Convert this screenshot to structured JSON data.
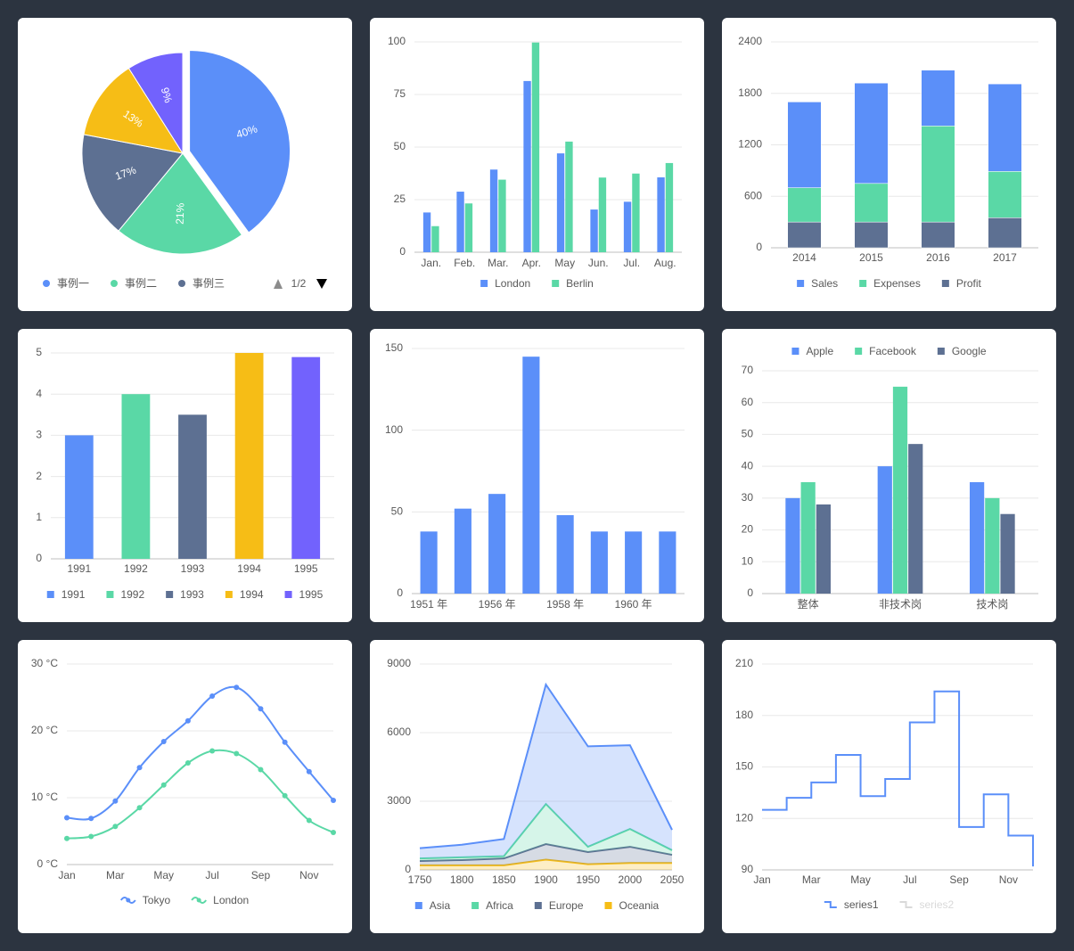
{
  "chart_data": [
    {
      "type": "pie",
      "categories": [
        "事例一",
        "事例二",
        "事例三",
        null,
        null
      ],
      "values": [
        40,
        21,
        17,
        13,
        9
      ],
      "value_labels": [
        "40%",
        "21%",
        "17%",
        "13%",
        "9%"
      ],
      "colors": [
        "#5b8ff9",
        "#5ad8a6",
        "#5d7092",
        "#f6bd16",
        "#7262fd"
      ],
      "legend_page": "1/2"
    },
    {
      "type": "bar",
      "categories": [
        "Jan.",
        "Feb.",
        "Mar.",
        "Apr.",
        "May",
        "Jun.",
        "Jul.",
        "Aug."
      ],
      "series": [
        {
          "name": "London",
          "color": "#5b8ff9",
          "values": [
            18.9,
            28.8,
            39.3,
            81.4,
            47,
            20.3,
            24,
            35.6
          ]
        },
        {
          "name": "Berlin",
          "color": "#5ad8a6",
          "values": [
            12.4,
            23.2,
            34.5,
            99.7,
            52.6,
            35.5,
            37.4,
            42.4
          ]
        }
      ],
      "ylim": [
        0,
        100
      ],
      "yticks": [
        0,
        25,
        50,
        75,
        100
      ],
      "grid": true,
      "legend": "bottom"
    },
    {
      "type": "bar",
      "stacked": true,
      "categories": [
        "2014",
        "2015",
        "2016",
        "2017"
      ],
      "series": [
        {
          "name": "Sales",
          "color": "#5b8ff9",
          "values": [
            1000,
            1170,
            650,
            1020
          ]
        },
        {
          "name": "Expenses",
          "color": "#5ad8a6",
          "values": [
            400,
            450,
            1120,
            540
          ]
        },
        {
          "name": "Profit",
          "color": "#5d7092",
          "values": [
            300,
            300,
            300,
            350
          ]
        }
      ],
      "ylim": [
        0,
        2400
      ],
      "yticks": [
        0,
        600,
        1200,
        1800,
        2400
      ],
      "grid": true,
      "legend": "bottom"
    },
    {
      "type": "bar",
      "categories": [
        "1991",
        "1992",
        "1993",
        "1994",
        "1995"
      ],
      "values": [
        3,
        4,
        3.5,
        5,
        4.9
      ],
      "colors": [
        "#5b8ff9",
        "#5ad8a6",
        "#5d7092",
        "#f6bd16",
        "#7262fd"
      ],
      "ylim": [
        0,
        5
      ],
      "yticks": [
        0,
        1,
        2,
        3,
        4,
        5
      ],
      "grid": true,
      "legend": "bottom"
    },
    {
      "type": "bar",
      "categories": [
        "1951 年",
        null,
        "1956 年",
        null,
        "1958 年",
        null,
        "1960 年",
        null
      ],
      "values": [
        38,
        52,
        61,
        145,
        48,
        38,
        38,
        38
      ],
      "color": "#5b8ff9",
      "ylim": [
        0,
        150
      ],
      "yticks": [
        0,
        50,
        100,
        150
      ],
      "grid": true
    },
    {
      "type": "bar",
      "categories": [
        "整体",
        "非技术岗",
        "技术岗"
      ],
      "series": [
        {
          "name": "Apple",
          "color": "#5b8ff9",
          "values": [
            30,
            40,
            35
          ]
        },
        {
          "name": "Facebook",
          "color": "#5ad8a6",
          "values": [
            35,
            65,
            30
          ]
        },
        {
          "name": "Google",
          "color": "#5d7092",
          "values": [
            28,
            47,
            25
          ]
        }
      ],
      "ylim": [
        0,
        70
      ],
      "yticks": [
        0,
        10,
        20,
        30,
        40,
        50,
        60,
        70
      ],
      "grid": true,
      "legend": "top"
    },
    {
      "type": "line",
      "smooth": true,
      "categories": [
        "Jan",
        null,
        "Mar",
        null,
        "May",
        null,
        "Jul",
        null,
        "Sep",
        null,
        "Nov",
        null
      ],
      "series": [
        {
          "name": "Tokyo",
          "color": "#5b8ff9",
          "values": [
            7,
            6.9,
            9.5,
            14.5,
            18.4,
            21.5,
            25.2,
            26.5,
            23.3,
            18.3,
            13.9,
            9.6
          ]
        },
        {
          "name": "London",
          "color": "#5ad8a6",
          "values": [
            3.9,
            4.2,
            5.7,
            8.5,
            11.9,
            15.2,
            17,
            16.6,
            14.2,
            10.3,
            6.6,
            4.8
          ]
        }
      ],
      "ylim": [
        0,
        30
      ],
      "yticks": [
        {
          "value": 0,
          "label": "0 °C"
        },
        {
          "value": 10,
          "label": "10 °C"
        },
        {
          "value": 20,
          "label": "20 °C"
        },
        {
          "value": 30,
          "label": "30 °C"
        }
      ],
      "grid": true,
      "legend": "bottom"
    },
    {
      "type": "area",
      "stacked": true,
      "x": [
        1750,
        1800,
        1850,
        1900,
        1950,
        2000,
        2050
      ],
      "series": [
        {
          "name": "Asia",
          "color": "#5b8ff9",
          "values": [
            450,
            550,
            750,
            5220,
            4390,
            3660,
            890
          ]
        },
        {
          "name": "Africa",
          "color": "#5ad8a6",
          "values": [
            110,
            120,
            100,
            1750,
            230,
            780,
            200
          ]
        },
        {
          "name": "Europe",
          "color": "#5d7092",
          "values": [
            190,
            230,
            300,
            680,
            530,
            710,
            360
          ]
        },
        {
          "name": "Oceania",
          "color": "#f6bd16",
          "values": [
            200,
            200,
            200,
            450,
            250,
            300,
            300
          ]
        }
      ],
      "xlim": [
        1750,
        2050
      ],
      "xticks": [
        1750,
        1800,
        1850,
        1900,
        1950,
        2000,
        2050
      ],
      "ylim": [
        0,
        9000
      ],
      "yticks": [
        0,
        3000,
        6000,
        9000
      ],
      "grid": true,
      "legend": "bottom"
    },
    {
      "type": "line",
      "step": true,
      "categories": [
        "Jan",
        null,
        "Mar",
        null,
        "May",
        null,
        "Jul",
        null,
        "Sep",
        null,
        "Nov",
        null
      ],
      "series": [
        {
          "name": "series1",
          "color": "#5b8ff9",
          "values": [
            125,
            132,
            141,
            157,
            133,
            143,
            176,
            194,
            115,
            134,
            110,
            92
          ]
        },
        {
          "name": "series2",
          "visible": false
        }
      ],
      "ylim": [
        90,
        210
      ],
      "yticks": [
        90,
        120,
        150,
        180,
        210
      ],
      "grid": true,
      "legend": "bottom"
    }
  ]
}
